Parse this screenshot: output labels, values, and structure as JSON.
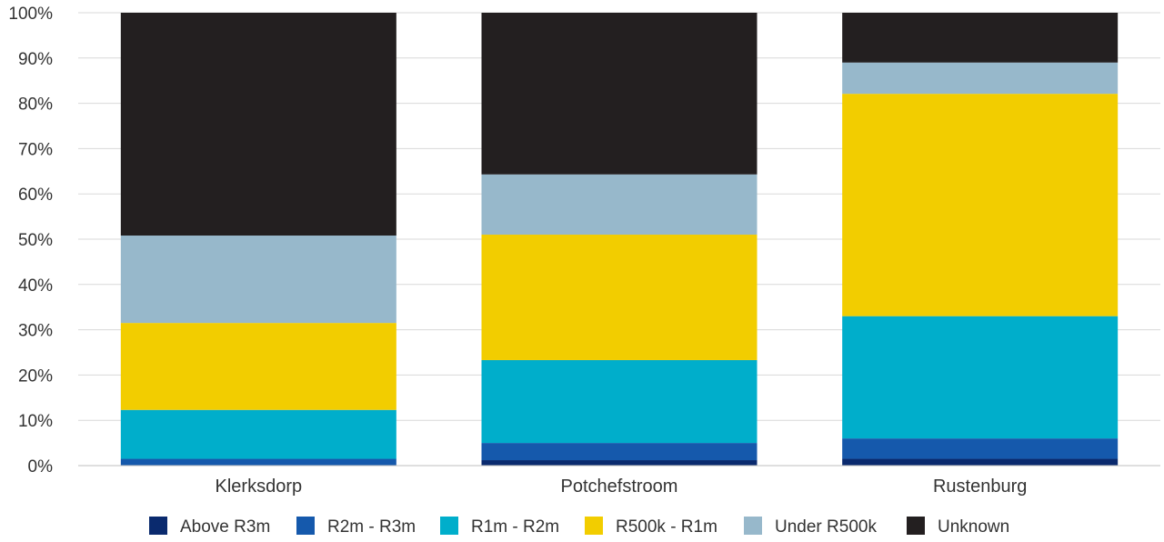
{
  "chart_data": {
    "type": "bar",
    "stacked": true,
    "percent_stacked": true,
    "categories": [
      "Klerksdorp",
      "Potchefstroom",
      "Rustenburg"
    ],
    "series": [
      {
        "name": "Above R3m",
        "color": "#0a2a6e",
        "values": [
          0.0,
          1.2,
          1.5
        ]
      },
      {
        "name": "R2m - R3m",
        "color": "#1559ac",
        "values": [
          1.5,
          3.8,
          4.5
        ]
      },
      {
        "name": "R1m - R2m",
        "color": "#00aecb",
        "values": [
          10.8,
          18.3,
          27.0
        ]
      },
      {
        "name": "R500k - R1m",
        "color": "#f2cd00",
        "values": [
          19.2,
          27.7,
          49.1
        ]
      },
      {
        "name": "Under R500k",
        "color": "#97b8cb",
        "values": [
          19.3,
          13.3,
          6.9
        ]
      },
      {
        "name": "Unknown",
        "color": "#231f20",
        "values": [
          49.2,
          35.7,
          11.0
        ]
      }
    ],
    "ylim": [
      0,
      100
    ],
    "yticks": [
      "0%",
      "10%",
      "20%",
      "30%",
      "40%",
      "50%",
      "60%",
      "70%",
      "80%",
      "90%",
      "100%"
    ],
    "grid": true,
    "legend_position": "bottom"
  }
}
